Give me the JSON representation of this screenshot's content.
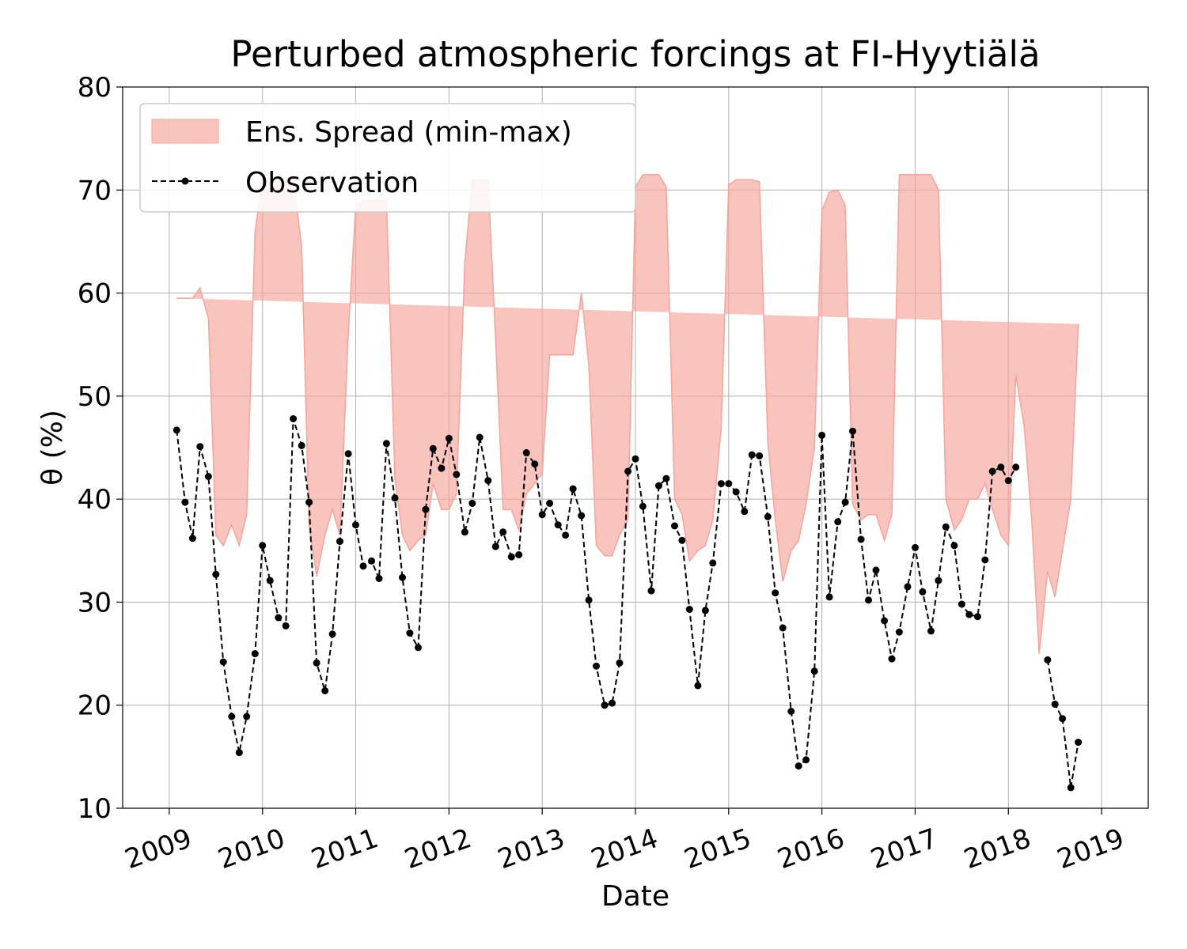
{
  "chart_data": {
    "type": "line",
    "title": "Perturbed atmospheric forcings at FI-Hyytiälä",
    "xlabel": "Date",
    "ylabel": "θ  (%)",
    "ylim": [
      10,
      80
    ],
    "xlim": [
      2008.5,
      2019.5
    ],
    "yticks": [
      10,
      20,
      30,
      40,
      50,
      60,
      70,
      80
    ],
    "xticks": [
      2009,
      2010,
      2011,
      2012,
      2013,
      2014,
      2015,
      2016,
      2017,
      2018,
      2019
    ],
    "xtick_labels": [
      "2009",
      "2010",
      "2011",
      "2012",
      "2013",
      "2014",
      "2015",
      "2016",
      "2017",
      "2018",
      "2019"
    ],
    "grid": true,
    "legend": {
      "placement": "top-left",
      "entries": [
        "Ens. Spread (min-max)",
        "Observation"
      ]
    },
    "colors": {
      "spread": "#f4a49a",
      "observation": "#000000"
    },
    "series": [
      {
        "name": "Ens. Spread (min-max)",
        "kind": "band",
        "x": [
          2009.08,
          2009.17,
          2009.25,
          2009.33,
          2009.42,
          2009.5,
          2009.58,
          2009.67,
          2009.75,
          2009.83,
          2009.92,
          2010.0,
          2010.08,
          2010.17,
          2010.25,
          2010.33,
          2010.42,
          2010.5,
          2010.58,
          2010.67,
          2010.75,
          2010.83,
          2010.92,
          2011.0,
          2011.08,
          2011.17,
          2011.25,
          2011.33,
          2011.42,
          2011.5,
          2011.58,
          2011.67,
          2011.75,
          2011.83,
          2011.92,
          2012.0,
          2012.08,
          2012.17,
          2012.25,
          2012.33,
          2012.42,
          2012.5,
          2012.58,
          2012.67,
          2012.75,
          2012.83,
          2012.92,
          2013.0,
          2013.08,
          2013.17,
          2013.25,
          2013.33,
          2013.42,
          2013.5,
          2013.58,
          2013.67,
          2013.75,
          2013.83,
          2013.92,
          2014.0,
          2014.08,
          2014.17,
          2014.25,
          2014.33,
          2014.42,
          2014.5,
          2014.58,
          2014.67,
          2014.75,
          2014.83,
          2014.92,
          2015.0,
          2015.08,
          2015.17,
          2015.25,
          2015.33,
          2015.42,
          2015.5,
          2015.58,
          2015.67,
          2015.75,
          2015.83,
          2015.92,
          2016.0,
          2016.08,
          2016.17,
          2016.25,
          2016.33,
          2016.42,
          2016.5,
          2016.58,
          2016.67,
          2016.75,
          2016.83,
          2016.92,
          2017.0,
          2017.08,
          2017.17,
          2017.25,
          2017.33,
          2017.42,
          2017.5,
          2017.58,
          2017.67,
          2017.75,
          2017.83,
          2017.92,
          2018.0,
          2018.08,
          2018.17,
          2018.25,
          2018.33,
          2018.42,
          2018.5,
          2018.58,
          2018.67,
          2018.75,
          2018.83,
          2018.92,
          2019.0
        ],
        "min": [
          59.5,
          59.5,
          59.5,
          60.5,
          57.5,
          36.0,
          31.5,
          33.0,
          31.8,
          35.5,
          55.5,
          59.3,
          61.5,
          61.5,
          61.5,
          62.0,
          61.0,
          22.5,
          22.0,
          34.5,
          36.0,
          35.5,
          52.5,
          60.0,
          60.0,
          60.0,
          60.0,
          62.5,
          32.0,
          32.0,
          31.5,
          31.5,
          36.0,
          40.0,
          37.5,
          36.5,
          37.0,
          35.5,
          56.5,
          60.2,
          58.0,
          39.0,
          35.5,
          33.5,
          37.5,
          40.0,
          39.5,
          39.5,
          49.7,
          49.7,
          49.7,
          49.7,
          55.5,
          36.5,
          29.0,
          29.5,
          32.5,
          35.5,
          38.5,
          52.0,
          53.5,
          60.3,
          60.0,
          56.0,
          37.5,
          36.0,
          29.0,
          27.5,
          32.5,
          34.5,
          38.0,
          61.5,
          65.8,
          65.8,
          65.8,
          44.0,
          31.5,
          35.0,
          28.5,
          30.5,
          32.0,
          37.0,
          39.0,
          57.8,
          57.5,
          57.5,
          42.0,
          32.5,
          36.0,
          35.5,
          34.0,
          36.0,
          56.5,
          68.7,
          69.0,
          69.0,
          69.0,
          69.0,
          62.0,
          36.0,
          33.5,
          35.5,
          37.0,
          38.5,
          38.0,
          38.5,
          36.0,
          34.5,
          33.0,
          31.5,
          38.5,
          33.0,
          20.5,
          22.0,
          15.5,
          25.0,
          33.0,
          48.0
        ],
        "max": [
          59.5,
          59.5,
          59.5,
          60.5,
          57.5,
          36.5,
          35.5,
          37.5,
          35.5,
          38.5,
          66.0,
          71.0,
          71.0,
          71.0,
          71.0,
          71.0,
          64.5,
          37.5,
          32.5,
          36.5,
          39.0,
          36.5,
          56.0,
          68.5,
          69.0,
          69.0,
          69.0,
          69.0,
          42.0,
          36.5,
          35.0,
          36.0,
          36.5,
          41.5,
          39.0,
          39.0,
          40.5,
          63.0,
          71.0,
          71.0,
          71.0,
          55.5,
          39.0,
          39.0,
          37.0,
          40.5,
          41.5,
          42.5,
          54.0,
          54.0,
          54.0,
          54.0,
          60.0,
          53.0,
          35.5,
          34.5,
          34.5,
          36.5,
          38.0,
          70.3,
          71.5,
          71.5,
          71.5,
          70.3,
          40.0,
          38.5,
          34.0,
          35.0,
          35.5,
          38.0,
          47.0,
          70.5,
          71.0,
          71.0,
          71.0,
          70.8,
          45.5,
          38.0,
          32.0,
          35.0,
          36.0,
          39.5,
          45.0,
          68.0,
          69.8,
          70.0,
          68.5,
          39.5,
          38.0,
          38.5,
          38.5,
          36.0,
          38.5,
          71.5,
          71.5,
          71.5,
          71.5,
          71.5,
          70.0,
          40.0,
          37.0,
          38.0,
          40.0,
          40.0,
          41.5,
          39.0,
          36.5,
          35.5,
          52.0,
          47.0,
          38.0,
          25.0,
          33.0,
          30.5,
          35.0,
          40.0,
          57.0
        ]
      },
      {
        "name": "Observation",
        "kind": "line",
        "segments": [
          {
            "x": [
              2009.08,
              2009.17,
              2009.25,
              2009.33,
              2009.42,
              2009.5,
              2009.58,
              2009.67,
              2009.75,
              2009.83,
              2009.92,
              2010.0,
              2010.08,
              2010.17,
              2010.25,
              2010.33,
              2010.42,
              2010.5,
              2010.58,
              2010.67,
              2010.75,
              2010.83,
              2010.92,
              2011.0,
              2011.08,
              2011.17,
              2011.25,
              2011.33,
              2011.42,
              2011.5,
              2011.58,
              2011.67,
              2011.75,
              2011.83,
              2011.92,
              2012.0,
              2012.08,
              2012.17,
              2012.25,
              2012.33,
              2012.42,
              2012.5,
              2012.58,
              2012.67,
              2012.75,
              2012.83,
              2012.92,
              2013.0,
              2013.08,
              2013.17,
              2013.25,
              2013.33,
              2013.42,
              2013.5,
              2013.58,
              2013.67,
              2013.75,
              2013.83,
              2013.92,
              2014.0,
              2014.08,
              2014.17,
              2014.25,
              2014.33,
              2014.42,
              2014.5,
              2014.58,
              2014.67,
              2014.75,
              2014.83,
              2014.92,
              2015.0,
              2015.08,
              2015.17,
              2015.25,
              2015.33,
              2015.42,
              2015.5,
              2015.58,
              2015.67,
              2015.75,
              2015.83,
              2015.92,
              2016.0,
              2016.08,
              2016.17,
              2016.25,
              2016.33,
              2016.42,
              2016.5,
              2016.58,
              2016.67,
              2016.75,
              2016.83,
              2016.92,
              2017.0,
              2017.08,
              2017.17,
              2017.25,
              2017.33,
              2017.42,
              2017.5,
              2017.58,
              2017.67,
              2017.75,
              2017.83,
              2017.92,
              2018.0,
              2018.08
            ],
            "y": [
              46.7,
              39.7,
              36.2,
              45.1,
              42.2,
              32.7,
              24.2,
              18.9,
              15.4,
              18.9,
              25.0,
              35.5,
              32.1,
              28.5,
              27.7,
              47.8,
              45.2,
              39.7,
              24.1,
              21.4,
              26.9,
              35.9,
              44.4,
              37.5,
              33.5,
              34.0,
              32.3,
              45.4,
              40.1,
              32.4,
              27.0,
              25.6,
              39.0,
              44.9,
              43.0,
              45.9,
              42.4,
              36.8,
              39.6,
              46.0,
              41.8,
              35.4,
              36.8,
              34.4,
              34.6,
              44.5,
              43.4,
              38.5,
              39.6,
              37.5,
              36.5,
              41.0,
              38.4,
              30.2,
              23.8,
              20.0,
              20.2,
              24.1,
              42.7,
              43.9,
              39.3,
              31.1,
              41.3,
              42.0,
              37.4,
              36.0,
              29.3,
              21.9,
              29.2,
              33.8,
              41.5,
              41.5,
              40.7,
              38.8,
              44.3,
              44.2,
              38.3,
              30.9,
              27.5,
              19.4,
              14.1,
              14.7,
              23.3,
              46.2,
              30.5,
              37.8,
              39.7,
              46.6,
              36.1,
              30.2,
              33.1,
              28.2,
              24.5,
              27.1,
              31.5,
              35.3,
              31.0,
              27.2,
              32.1,
              37.3,
              35.5,
              29.8,
              28.8,
              28.6,
              34.1,
              42.7,
              43.1,
              41.8,
              43.1
            ]
          },
          {
            "x": [
              2018.42,
              2018.5,
              2018.58,
              2018.67,
              2018.75
            ],
            "y": [
              24.4,
              20.1,
              18.7,
              12.0,
              16.4
            ]
          }
        ]
      }
    ]
  }
}
